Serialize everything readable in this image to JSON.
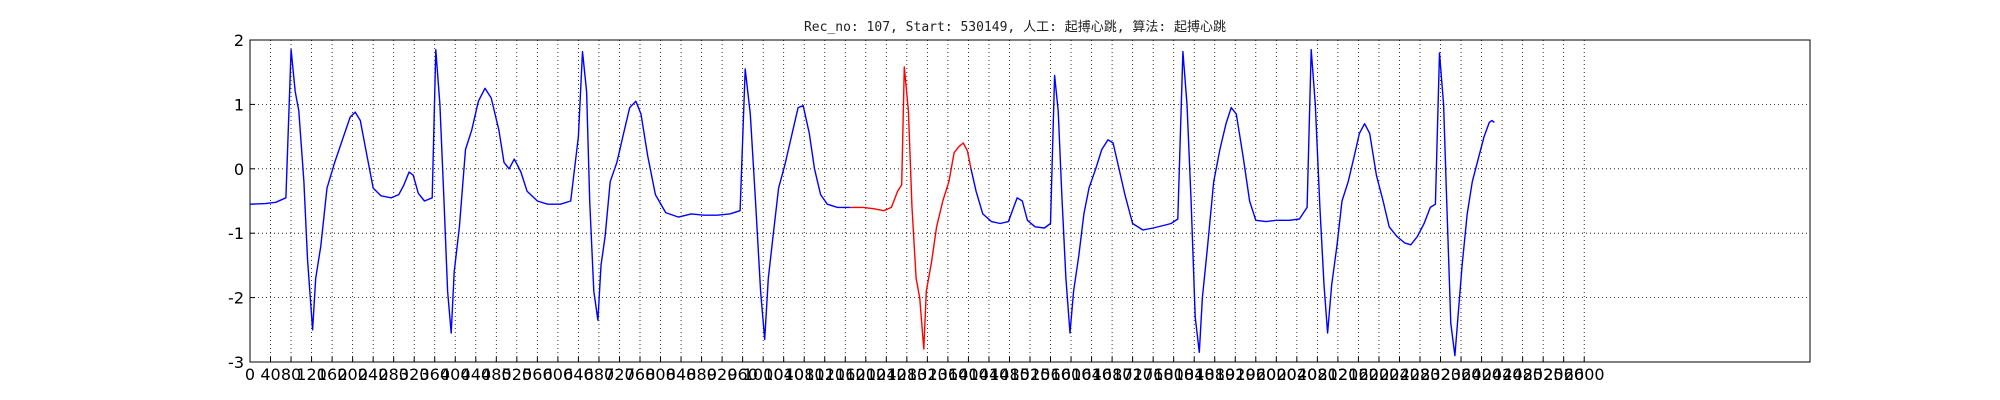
{
  "chart_data": {
    "type": "line",
    "title": "Rec_no: 107, Start: 530149, 人工: 起搏心跳, 算法: 起搏心跳",
    "xlabel": "",
    "ylabel": "",
    "xlim": [
      0,
      3040
    ],
    "ylim": [
      -3,
      2
    ],
    "yticks": [
      -3,
      -2,
      -1,
      0,
      1,
      2
    ],
    "xticks": [
      0,
      40,
      80,
      120,
      160,
      200,
      240,
      280,
      320,
      360,
      400,
      440,
      480,
      520,
      560,
      600,
      640,
      680,
      720,
      760,
      800,
      840,
      880,
      920,
      960,
      1000,
      1040,
      1080,
      1120,
      1160,
      1200,
      1240,
      1280,
      1320,
      1360,
      1400,
      1440,
      1480,
      1520,
      1560,
      1600,
      1640,
      1680,
      1720,
      1760,
      1800,
      1840,
      1880,
      1920,
      1960,
      2000,
      2040,
      2080,
      2120,
      2160,
      2200,
      2240,
      2280,
      2320,
      2360,
      2400,
      2440,
      2480,
      2520,
      2560,
      2600
    ],
    "grid": true,
    "series": [
      {
        "color": "#0000ff",
        "points": [
          [
            0,
            -0.55
          ],
          [
            30,
            -0.54
          ],
          [
            50,
            -0.52
          ],
          [
            70,
            -0.45
          ],
          [
            80,
            1.85
          ],
          [
            88,
            1.2
          ],
          [
            95,
            0.9
          ],
          [
            105,
            -0.2
          ],
          [
            112,
            -1.4
          ],
          [
            122,
            -2.5
          ],
          [
            128,
            -1.7
          ],
          [
            138,
            -1.2
          ],
          [
            150,
            -0.3
          ],
          [
            165,
            0.1
          ],
          [
            180,
            0.45
          ],
          [
            195,
            0.8
          ],
          [
            205,
            0.88
          ],
          [
            215,
            0.75
          ],
          [
            228,
            0.2
          ],
          [
            240,
            -0.3
          ],
          [
            255,
            -0.42
          ],
          [
            275,
            -0.45
          ],
          [
            290,
            -0.4
          ],
          [
            300,
            -0.25
          ],
          [
            310,
            -0.05
          ],
          [
            318,
            -0.1
          ],
          [
            328,
            -0.38
          ],
          [
            340,
            -0.5
          ],
          [
            355,
            -0.45
          ],
          [
            362,
            1.85
          ],
          [
            370,
            1.0
          ],
          [
            378,
            -0.5
          ],
          [
            385,
            -1.9
          ],
          [
            392,
            -2.55
          ],
          [
            398,
            -1.6
          ],
          [
            408,
            -0.9
          ],
          [
            420,
            0.3
          ],
          [
            432,
            0.6
          ],
          [
            445,
            1.05
          ],
          [
            458,
            1.25
          ],
          [
            470,
            1.1
          ],
          [
            485,
            0.6
          ],
          [
            495,
            0.1
          ],
          [
            505,
            0.0
          ],
          [
            515,
            0.15
          ],
          [
            528,
            -0.05
          ],
          [
            540,
            -0.35
          ],
          [
            560,
            -0.5
          ],
          [
            580,
            -0.55
          ],
          [
            605,
            -0.55
          ],
          [
            625,
            -0.5
          ],
          [
            640,
            0.5
          ],
          [
            648,
            1.82
          ],
          [
            656,
            1.2
          ],
          [
            662,
            -0.5
          ],
          [
            670,
            -1.9
          ],
          [
            678,
            -2.35
          ],
          [
            684,
            -1.5
          ],
          [
            692,
            -1.05
          ],
          [
            702,
            -0.2
          ],
          [
            715,
            0.1
          ],
          [
            728,
            0.55
          ],
          [
            740,
            0.95
          ],
          [
            752,
            1.05
          ],
          [
            762,
            0.85
          ],
          [
            775,
            0.2
          ],
          [
            790,
            -0.4
          ],
          [
            810,
            -0.68
          ],
          [
            835,
            -0.75
          ],
          [
            860,
            -0.7
          ],
          [
            885,
            -0.72
          ],
          [
            910,
            -0.72
          ],
          [
            935,
            -0.7
          ],
          [
            955,
            -0.65
          ],
          [
            965,
            1.55
          ],
          [
            975,
            0.85
          ],
          [
            985,
            -0.5
          ],
          [
            995,
            -1.9
          ],
          [
            1003,
            -2.65
          ],
          [
            1010,
            -1.7
          ],
          [
            1020,
            -1.0
          ],
          [
            1030,
            -0.3
          ],
          [
            1042,
            0.05
          ],
          [
            1055,
            0.5
          ],
          [
            1068,
            0.95
          ],
          [
            1078,
            0.98
          ],
          [
            1090,
            0.55
          ],
          [
            1100,
            0.0
          ],
          [
            1112,
            -0.4
          ],
          [
            1125,
            -0.55
          ],
          [
            1145,
            -0.6
          ],
          [
            1170,
            -0.6
          ]
        ]
      },
      {
        "color": "#ff0000",
        "points": [
          [
            1170,
            -0.6
          ],
          [
            1195,
            -0.6
          ],
          [
            1215,
            -0.62
          ],
          [
            1235,
            -0.65
          ],
          [
            1250,
            -0.6
          ],
          [
            1262,
            -0.35
          ],
          [
            1270,
            -0.25
          ],
          [
            1275,
            1.58
          ],
          [
            1283,
            0.9
          ],
          [
            1290,
            -0.6
          ],
          [
            1298,
            -1.7
          ],
          [
            1305,
            -2.0
          ],
          [
            1313,
            -2.8
          ],
          [
            1318,
            -1.9
          ],
          [
            1328,
            -1.45
          ],
          [
            1338,
            -0.9
          ],
          [
            1350,
            -0.5
          ],
          [
            1362,
            -0.2
          ],
          [
            1372,
            0.25
          ],
          [
            1382,
            0.35
          ],
          [
            1390,
            0.4
          ],
          [
            1398,
            0.28
          ],
          [
            1405,
            0.0
          ]
        ]
      },
      {
        "color": "#0000ff",
        "points": [
          [
            1405,
            0.0
          ],
          [
            1415,
            -0.35
          ],
          [
            1428,
            -0.7
          ],
          [
            1445,
            -0.82
          ],
          [
            1462,
            -0.85
          ],
          [
            1478,
            -0.82
          ],
          [
            1488,
            -0.6
          ],
          [
            1495,
            -0.45
          ],
          [
            1505,
            -0.5
          ],
          [
            1515,
            -0.8
          ],
          [
            1530,
            -0.9
          ],
          [
            1548,
            -0.92
          ],
          [
            1560,
            -0.85
          ],
          [
            1568,
            1.45
          ],
          [
            1575,
            0.9
          ],
          [
            1582,
            -0.4
          ],
          [
            1590,
            -1.7
          ],
          [
            1598,
            -2.55
          ],
          [
            1605,
            -1.9
          ],
          [
            1615,
            -1.35
          ],
          [
            1625,
            -0.7
          ],
          [
            1635,
            -0.3
          ],
          [
            1648,
            0.0
          ],
          [
            1660,
            0.3
          ],
          [
            1672,
            0.45
          ],
          [
            1682,
            0.4
          ],
          [
            1692,
            0.05
          ],
          [
            1705,
            -0.4
          ],
          [
            1720,
            -0.85
          ],
          [
            1740,
            -0.95
          ],
          [
            1760,
            -0.92
          ],
          [
            1780,
            -0.88
          ],
          [
            1795,
            -0.85
          ],
          [
            1808,
            -0.78
          ],
          [
            1818,
            1.82
          ],
          [
            1826,
            1.0
          ],
          [
            1834,
            -0.5
          ],
          [
            1842,
            -2.3
          ],
          [
            1850,
            -2.85
          ],
          [
            1856,
            -2.0
          ],
          [
            1866,
            -1.2
          ],
          [
            1878,
            -0.2
          ],
          [
            1890,
            0.3
          ],
          [
            1902,
            0.7
          ],
          [
            1912,
            0.95
          ],
          [
            1922,
            0.85
          ],
          [
            1935,
            0.2
          ],
          [
            1948,
            -0.5
          ],
          [
            1960,
            -0.8
          ],
          [
            1980,
            -0.82
          ],
          [
            2000,
            -0.8
          ],
          [
            2025,
            -0.8
          ],
          [
            2045,
            -0.78
          ],
          [
            2060,
            -0.6
          ],
          [
            2068,
            1.85
          ],
          [
            2076,
            1.0
          ],
          [
            2085,
            -0.6
          ],
          [
            2093,
            -1.8
          ],
          [
            2100,
            -2.55
          ],
          [
            2108,
            -1.8
          ],
          [
            2118,
            -1.2
          ],
          [
            2128,
            -0.5
          ],
          [
            2140,
            -0.2
          ],
          [
            2152,
            0.2
          ],
          [
            2162,
            0.55
          ],
          [
            2172,
            0.7
          ],
          [
            2182,
            0.55
          ],
          [
            2195,
            -0.1
          ],
          [
            2208,
            -0.5
          ],
          [
            2220,
            -0.9
          ],
          [
            2235,
            -1.05
          ],
          [
            2250,
            -1.15
          ],
          [
            2262,
            -1.18
          ],
          [
            2275,
            -1.05
          ],
          [
            2288,
            -0.85
          ],
          [
            2300,
            -0.6
          ],
          [
            2310,
            -0.55
          ],
          [
            2318,
            1.8
          ],
          [
            2326,
            1.0
          ],
          [
            2332,
            -0.5
          ],
          [
            2340,
            -2.4
          ],
          [
            2348,
            -2.9
          ],
          [
            2355,
            -2.2
          ],
          [
            2362,
            -1.5
          ],
          [
            2372,
            -0.7
          ],
          [
            2382,
            -0.2
          ],
          [
            2395,
            0.2
          ],
          [
            2405,
            0.5
          ],
          [
            2415,
            0.72
          ],
          [
            2420,
            0.75
          ],
          [
            2425,
            0.72
          ]
        ]
      }
    ]
  }
}
